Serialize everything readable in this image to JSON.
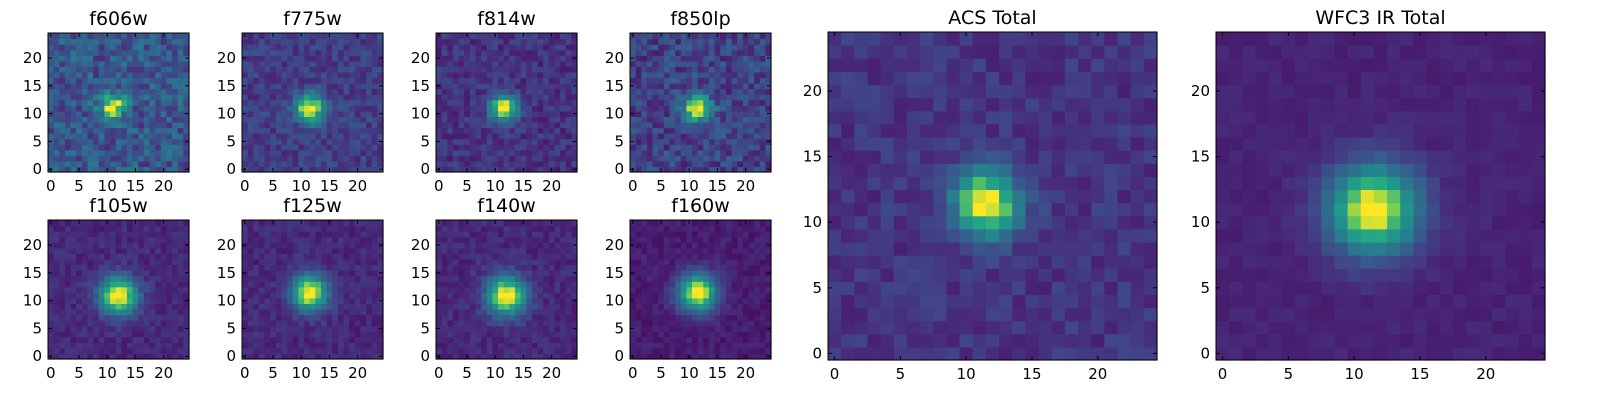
{
  "chart_data": {
    "type": "heatmap",
    "colormap": "viridis",
    "grid": false,
    "panels": [
      {
        "title": "f606w",
        "source": {
          "center": [
            11,
            11.5
          ],
          "sigma": 1.5,
          "background": 0.32,
          "noise": 0.16,
          "peak": 1.0
        },
        "xticks": [
          "0",
          "5",
          "10",
          "15",
          "20"
        ],
        "yticks": [
          "0",
          "5",
          "10",
          "15",
          "20"
        ],
        "xlim": [
          0,
          24
        ],
        "ylim": [
          0,
          24
        ]
      },
      {
        "title": "f775w",
        "source": {
          "center": [
            11.5,
            11
          ],
          "sigma": 1.8,
          "background": 0.22,
          "noise": 0.1,
          "peak": 1.0
        },
        "xticks": [
          "0",
          "5",
          "10",
          "15",
          "20"
        ],
        "yticks": [
          "0",
          "5",
          "10",
          "15",
          "20"
        ],
        "xlim": [
          0,
          24
        ],
        "ylim": [
          0,
          24
        ]
      },
      {
        "title": "f814w",
        "source": {
          "center": [
            11.5,
            11
          ],
          "sigma": 1.7,
          "background": 0.18,
          "noise": 0.09,
          "peak": 1.0
        },
        "xticks": [
          "0",
          "5",
          "10",
          "15",
          "20"
        ],
        "yticks": [
          "0",
          "5",
          "10",
          "15",
          "20"
        ],
        "xlim": [
          0,
          24
        ],
        "ylim": [
          0,
          24
        ]
      },
      {
        "title": "f850lp",
        "source": {
          "center": [
            11.5,
            11
          ],
          "sigma": 1.7,
          "background": 0.24,
          "noise": 0.14,
          "peak": 1.0
        },
        "xticks": [
          "0",
          "5",
          "10",
          "15",
          "20"
        ],
        "yticks": [
          "0",
          "5",
          "10",
          "15",
          "20"
        ],
        "xlim": [
          0,
          24
        ],
        "ylim": [
          0,
          24
        ]
      },
      {
        "title": "f105w",
        "source": {
          "center": [
            12,
            11
          ],
          "sigma": 2.4,
          "background": 0.14,
          "noise": 0.06,
          "peak": 1.0
        },
        "xticks": [
          "0",
          "5",
          "10",
          "15",
          "20"
        ],
        "yticks": [
          "0",
          "5",
          "10",
          "15",
          "20"
        ],
        "xlim": [
          0,
          24
        ],
        "ylim": [
          0,
          24
        ]
      },
      {
        "title": "f125w",
        "source": {
          "center": [
            11.5,
            11.5
          ],
          "sigma": 2.3,
          "background": 0.14,
          "noise": 0.06,
          "peak": 1.0
        },
        "xticks": [
          "0",
          "5",
          "10",
          "15",
          "20"
        ],
        "yticks": [
          "0",
          "5",
          "10",
          "15",
          "20"
        ],
        "xlim": [
          0,
          24
        ],
        "ylim": [
          0,
          24
        ]
      },
      {
        "title": "f140w",
        "source": {
          "center": [
            12,
            11
          ],
          "sigma": 2.5,
          "background": 0.14,
          "noise": 0.06,
          "peak": 1.0
        },
        "xticks": [
          "0",
          "5",
          "10",
          "15",
          "20"
        ],
        "yticks": [
          "0",
          "5",
          "10",
          "15",
          "20"
        ],
        "xlim": [
          0,
          24
        ],
        "ylim": [
          0,
          24
        ]
      },
      {
        "title": "f160w",
        "source": {
          "center": [
            11.5,
            11.5
          ],
          "sigma": 2.4,
          "background": 0.1,
          "noise": 0.05,
          "peak": 1.0
        },
        "xticks": [
          "0",
          "5",
          "10",
          "15",
          "20"
        ],
        "yticks": [
          "0",
          "5",
          "10",
          "15",
          "20"
        ],
        "xlim": [
          0,
          24
        ],
        "ylim": [
          0,
          24
        ]
      },
      {
        "title": "ACS Total",
        "source": {
          "center": [
            11.5,
            11.5
          ],
          "sigma": 1.8,
          "background": 0.18,
          "noise": 0.07,
          "peak": 1.0
        },
        "xticks": [
          "0",
          "5",
          "10",
          "15",
          "20"
        ],
        "yticks": [
          "0",
          "5",
          "10",
          "15",
          "20"
        ],
        "xlim": [
          0,
          24
        ],
        "ylim": [
          0,
          24
        ]
      },
      {
        "title": "WFC3 IR Total",
        "source": {
          "center": [
            11.5,
            11
          ],
          "sigma": 2.4,
          "background": 0.12,
          "noise": 0.03,
          "peak": 1.0
        },
        "xticks": [
          "0",
          "5",
          "10",
          "15",
          "20"
        ],
        "yticks": [
          "0",
          "5",
          "10",
          "15",
          "20"
        ],
        "xlim": [
          0,
          24
        ],
        "ylim": [
          0,
          24
        ]
      }
    ]
  }
}
